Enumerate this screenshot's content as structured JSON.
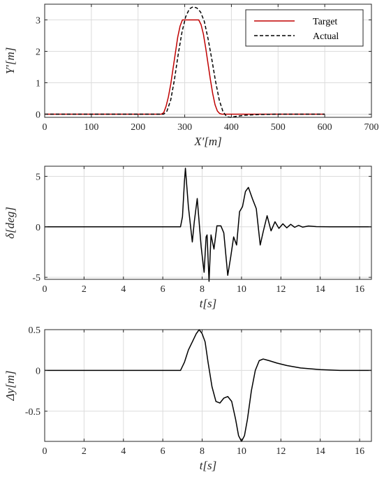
{
  "chart_data": [
    {
      "type": "line",
      "xlabel": "X′[m]",
      "ylabel": "Y′[m]",
      "xlim": [
        0,
        700
      ],
      "ylim": [
        -0.1,
        3.5
      ],
      "xticks": [
        "0",
        "100",
        "200",
        "300",
        "400",
        "500",
        "600",
        "700"
      ],
      "yticks": [
        "0",
        "1",
        "2",
        "3"
      ],
      "grid": true,
      "legend_position": "top-right",
      "series": [
        {
          "name": "Target",
          "color": "#c00000",
          "style": "solid",
          "x": [
            0,
            250,
            255,
            260,
            265,
            270,
            275,
            280,
            285,
            290,
            295,
            330,
            335,
            340,
            345,
            350,
            355,
            360,
            365,
            370,
            375,
            380,
            600
          ],
          "y": [
            0,
            0,
            0.05,
            0.25,
            0.55,
            0.95,
            1.45,
            1.95,
            2.45,
            2.8,
            3.0,
            3.0,
            2.85,
            2.55,
            2.1,
            1.6,
            1.1,
            0.65,
            0.3,
            0.1,
            0.02,
            0,
            0
          ]
        },
        {
          "name": "Actual",
          "color": "#000000",
          "style": "dashed",
          "x": [
            0,
            255,
            262,
            270,
            278,
            286,
            294,
            302,
            310,
            318,
            326,
            334,
            342,
            350,
            358,
            366,
            374,
            382,
            390,
            398,
            410,
            430,
            460,
            500,
            600
          ],
          "y": [
            0,
            0,
            0.1,
            0.45,
            1.1,
            1.9,
            2.6,
            3.1,
            3.35,
            3.42,
            3.38,
            3.25,
            2.95,
            2.4,
            1.75,
            1.05,
            0.45,
            0.08,
            -0.08,
            -0.1,
            -0.07,
            -0.03,
            -0.01,
            0,
            0
          ]
        }
      ]
    },
    {
      "type": "line",
      "xlabel": "t[s]",
      "ylabel": "δ[deg]",
      "xlim": [
        0,
        16.6
      ],
      "ylim": [
        -5.2,
        6
      ],
      "xticks": [
        "0",
        "2",
        "4",
        "6",
        "8",
        "10",
        "12",
        "14",
        "16"
      ],
      "yticks": [
        "-5",
        "0",
        "5"
      ],
      "grid": true,
      "series": [
        {
          "color": "#000000",
          "x": [
            0,
            6.9,
            7.0,
            7.1,
            7.15,
            7.3,
            7.5,
            7.6,
            7.75,
            7.95,
            8.1,
            8.2,
            8.25,
            8.35,
            8.45,
            8.6,
            8.75,
            8.95,
            9.1,
            9.3,
            9.45,
            9.6,
            9.75,
            9.9,
            10.05,
            10.2,
            10.35,
            10.55,
            10.75,
            10.95,
            11.1,
            11.3,
            11.5,
            11.7,
            11.9,
            12.1,
            12.3,
            12.5,
            12.7,
            12.9,
            13.1,
            13.4,
            13.8,
            14.5,
            16.6
          ],
          "y": [
            0,
            0,
            1.0,
            4.5,
            5.8,
            2.0,
            -1.5,
            0.5,
            2.8,
            -2.0,
            -4.5,
            -1.0,
            -0.8,
            -5.4,
            -0.8,
            -2.2,
            0.1,
            0.1,
            -0.6,
            -4.8,
            -3.0,
            -1.0,
            -1.8,
            1.5,
            2.0,
            3.5,
            3.9,
            2.8,
            1.8,
            -1.8,
            -0.5,
            1.1,
            -0.4,
            0.5,
            -0.15,
            0.3,
            -0.1,
            0.25,
            -0.05,
            0.15,
            -0.03,
            0.08,
            0.02,
            0,
            0
          ]
        }
      ]
    },
    {
      "type": "line",
      "xlabel": "t[s]",
      "ylabel": "Δy[m]",
      "xlim": [
        0,
        16.6
      ],
      "ylim": [
        -0.87,
        0.5
      ],
      "xticks": [
        "0",
        "2",
        "4",
        "6",
        "8",
        "10",
        "12",
        "14",
        "16"
      ],
      "yticks": [
        "-0.5",
        "0",
        "0.5"
      ],
      "grid": true,
      "series": [
        {
          "color": "#000000",
          "x": [
            0,
            6.9,
            7.1,
            7.3,
            7.5,
            7.7,
            7.85,
            8.0,
            8.15,
            8.3,
            8.5,
            8.7,
            8.9,
            9.1,
            9.3,
            9.5,
            9.7,
            9.85,
            10.0,
            10.15,
            10.3,
            10.5,
            10.7,
            10.9,
            11.1,
            11.4,
            11.8,
            12.3,
            13.0,
            14.0,
            15.0,
            16.6
          ],
          "y": [
            0,
            0,
            0.1,
            0.25,
            0.35,
            0.45,
            0.5,
            0.45,
            0.35,
            0.1,
            -0.2,
            -0.38,
            -0.4,
            -0.34,
            -0.32,
            -0.38,
            -0.6,
            -0.8,
            -0.87,
            -0.8,
            -0.6,
            -0.25,
            0.0,
            0.12,
            0.14,
            0.12,
            0.09,
            0.06,
            0.03,
            0.01,
            0.0,
            0.0
          ]
        }
      ]
    }
  ]
}
